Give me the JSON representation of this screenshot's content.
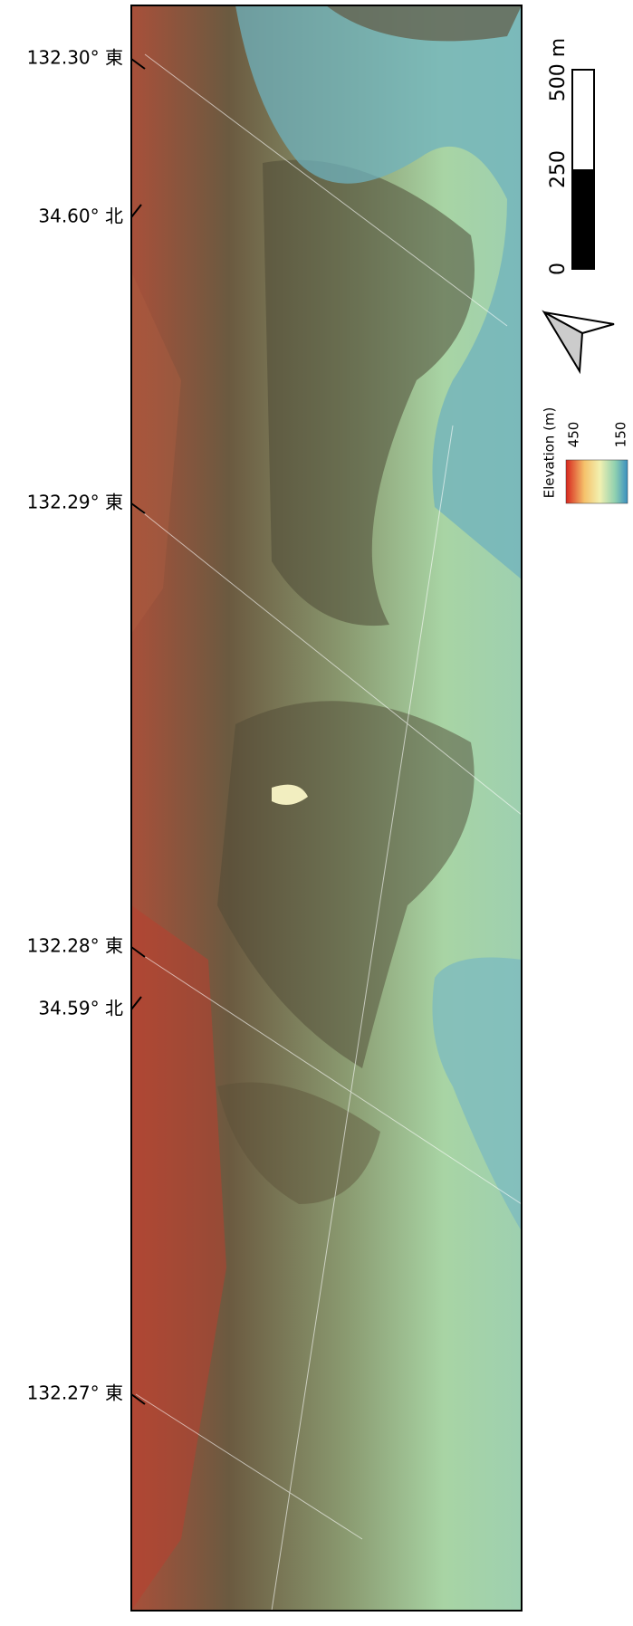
{
  "map": {
    "coordinate_labels": [
      "132.30° 東",
      "34.60° 北",
      "132.29° 東",
      "132.28° 東",
      "34.59° 北",
      "132.27° 東"
    ],
    "scale_bar": {
      "labels": [
        "500 m",
        "250",
        "0"
      ]
    },
    "legend": {
      "title": "Elevation (m)",
      "high": "450",
      "low": "150"
    }
  }
}
